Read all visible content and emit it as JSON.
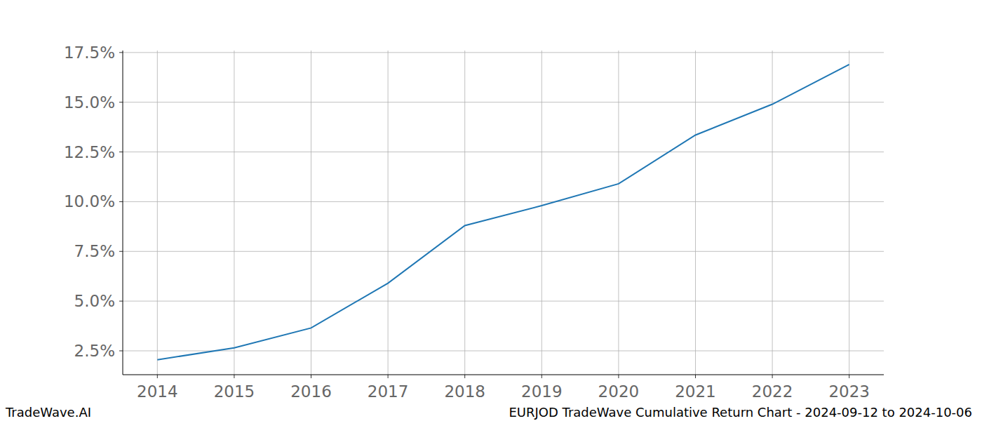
{
  "chart_data": {
    "type": "line",
    "title": "EURJOD TradeWave Cumulative Return Chart - 2024-09-12 to 2024-10-06",
    "source": "TradeWave.AI",
    "x": [
      2014,
      2015,
      2016,
      2017,
      2018,
      2019,
      2020,
      2021,
      2022,
      2023
    ],
    "values": [
      2.05,
      2.65,
      3.65,
      5.9,
      8.8,
      9.8,
      10.9,
      13.35,
      14.9,
      16.9
    ],
    "color": "#1f77b4",
    "xlim": [
      2013.55,
      2023.45
    ],
    "xticks": [
      2014,
      2015,
      2016,
      2017,
      2018,
      2019,
      2020,
      2021,
      2022,
      2023
    ],
    "ylim": [
      1.3,
      17.6
    ],
    "yticks": [
      {
        "value": 2.5,
        "label": "2.5%"
      },
      {
        "value": 5,
        "label": "5.0%"
      },
      {
        "value": 7.5,
        "label": "7.5%"
      },
      {
        "value": 10,
        "label": "10.0%"
      },
      {
        "value": 12.5,
        "label": "12.5%"
      },
      {
        "value": 15,
        "label": "15.0%"
      },
      {
        "value": 17.5,
        "label": "17.5%"
      }
    ],
    "grid": true
  }
}
